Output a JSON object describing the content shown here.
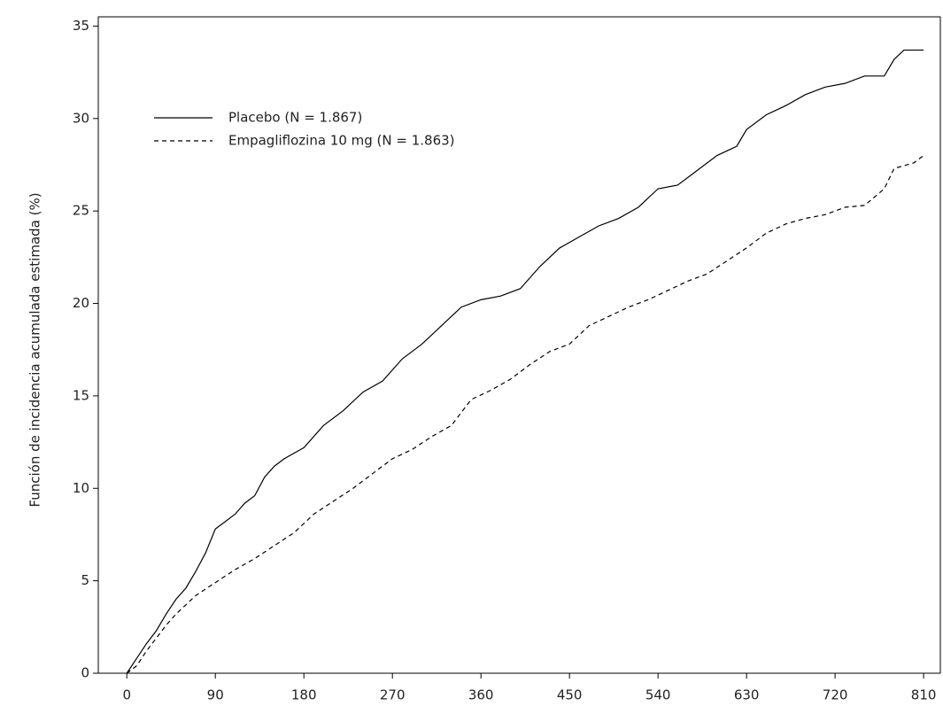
{
  "chart_data": {
    "type": "line",
    "y_label": "Función de incidencia acumulada estimada (%)",
    "xlim": [
      -29,
      827
    ],
    "ylim": [
      0,
      35.5
    ],
    "xticks": [
      0,
      90,
      180,
      270,
      360,
      450,
      540,
      630,
      720,
      810
    ],
    "yticks": [
      0,
      5,
      10,
      15,
      20,
      25,
      30,
      35
    ],
    "legend": "upper left",
    "series": [
      {
        "name": "Placebo (N = 1.867)",
        "color": "#000000",
        "line_style": "solid",
        "x": [
          0,
          10,
          20,
          30,
          40,
          50,
          60,
          70,
          80,
          90,
          100,
          110,
          120,
          130,
          140,
          150,
          160,
          180,
          200,
          220,
          240,
          260,
          280,
          300,
          320,
          340,
          360,
          380,
          400,
          420,
          440,
          460,
          480,
          500,
          520,
          540,
          560,
          580,
          600,
          620,
          630,
          650,
          670,
          690,
          710,
          730,
          750,
          770,
          780,
          790,
          810
        ],
        "values": [
          0,
          0.8,
          1.6,
          2.3,
          3.2,
          4.0,
          4.6,
          5.5,
          6.5,
          7.8,
          8.2,
          8.6,
          9.2,
          9.6,
          10.6,
          11.2,
          11.6,
          12.2,
          13.4,
          14.2,
          15.2,
          15.8,
          17.0,
          17.8,
          18.8,
          19.8,
          20.2,
          20.4,
          20.8,
          22.0,
          23.0,
          23.6,
          24.2,
          24.6,
          25.2,
          26.2,
          26.4,
          27.2,
          28.0,
          28.5,
          29.4,
          30.2,
          30.7,
          31.3,
          31.7,
          31.9,
          32.3,
          32.3,
          33.2,
          33.7,
          33.7
        ]
      },
      {
        "name": "Empagliflozina 10 mg (N = 1.863)",
        "color": "#000000",
        "line_style": "dashed",
        "x": [
          0,
          10,
          20,
          30,
          40,
          50,
          60,
          70,
          90,
          110,
          130,
          150,
          170,
          190,
          210,
          230,
          250,
          270,
          290,
          310,
          330,
          350,
          370,
          390,
          410,
          430,
          450,
          470,
          490,
          510,
          530,
          550,
          570,
          590,
          610,
          630,
          650,
          670,
          690,
          710,
          730,
          750,
          770,
          780,
          800,
          810
        ],
        "values": [
          0,
          0.4,
          1.2,
          1.9,
          2.6,
          3.2,
          3.7,
          4.2,
          4.9,
          5.6,
          6.2,
          6.9,
          7.6,
          8.6,
          9.3,
          10.0,
          10.8,
          11.6,
          12.1,
          12.8,
          13.4,
          14.8,
          15.3,
          15.9,
          16.7,
          17.4,
          17.8,
          18.8,
          19.3,
          19.8,
          20.2,
          20.7,
          21.2,
          21.6,
          22.3,
          23.0,
          23.8,
          24.3,
          24.6,
          24.8,
          25.2,
          25.3,
          26.2,
          27.3,
          27.6,
          28.0
        ]
      }
    ]
  }
}
